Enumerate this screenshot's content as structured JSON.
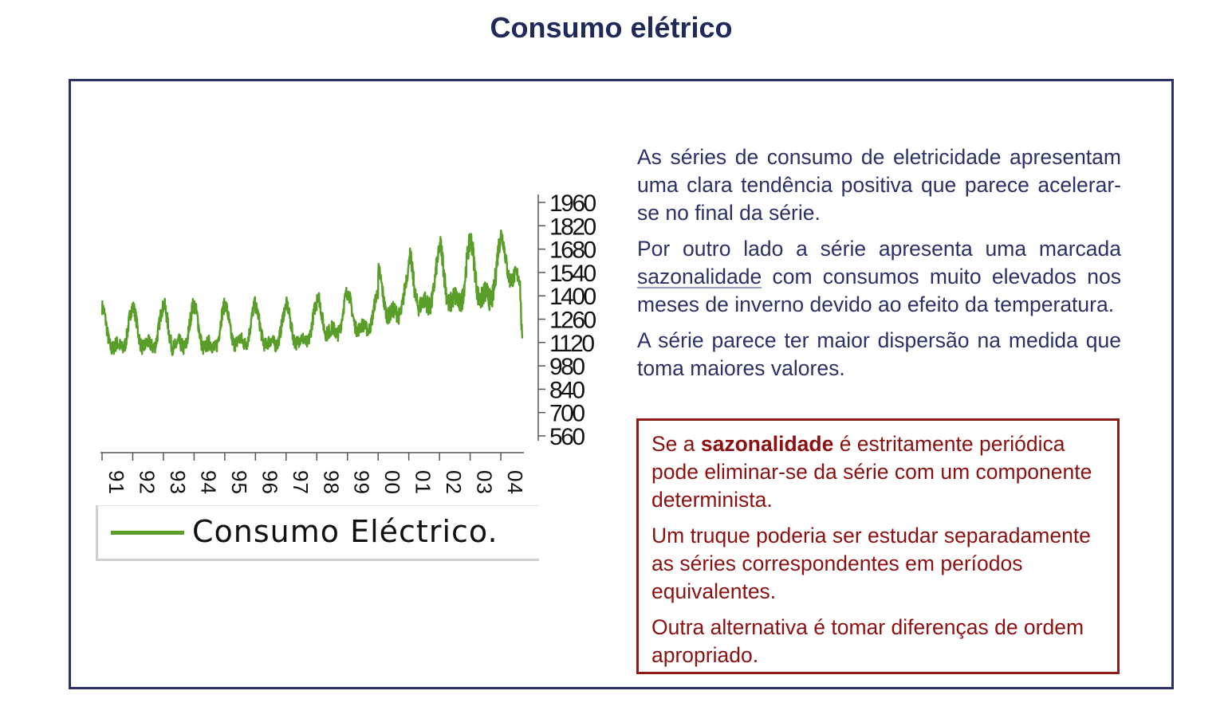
{
  "page": {
    "title": "Consumo elétrico"
  },
  "colors": {
    "title": "#1f2a5a",
    "frame": "#2b3166",
    "series": "#5a9e2a",
    "note": "#8b1010"
  },
  "chart_data": {
    "type": "line",
    "series": [
      {
        "name": "Consumo Eléctrico."
      }
    ],
    "x_tick_labels": [
      "91",
      "92",
      "93",
      "94",
      "95",
      "96",
      "97",
      "98",
      "99",
      "00",
      "01",
      "02",
      "03",
      "04"
    ],
    "x_range": [
      1991,
      2004.7
    ],
    "y_tick_labels": [
      "1960",
      "1820",
      "1680",
      "1540",
      "1400",
      "1260",
      "1120",
      "980",
      "840",
      "700",
      "560"
    ],
    "y_ticks": [
      1960,
      1820,
      1680,
      1540,
      1400,
      1260,
      1120,
      980,
      840,
      700,
      560
    ],
    "ylim": [
      560,
      1960
    ],
    "y_axis_position": "right",
    "legend_position": "bottom",
    "grid": false,
    "annual": {
      "year": [
        1991,
        1992,
        1993,
        1994,
        1995,
        1996,
        1997,
        1998,
        1999,
        2000,
        2001,
        2002,
        2003,
        2004
      ],
      "winter_peak": [
        1330,
        1330,
        1350,
        1340,
        1350,
        1330,
        1350,
        1420,
        1420,
        1550,
        1650,
        1710,
        1740,
        1770
      ],
      "summer_trough": [
        1000,
        1010,
        1000,
        1000,
        1030,
        1030,
        1040,
        1090,
        1120,
        1190,
        1230,
        1230,
        1250,
        1400
      ]
    }
  },
  "text": {
    "p1": "As séries de consumo de eletricidade apresentam uma clara tendência positiva que parece acelerar-se no final da série.",
    "p2_pre": "Por outro lado a série apresenta uma marcada",
    "p2_hl": "sazonalidade",
    "p2_post": "com consumos muito elevados nos meses de inverno devido ao efeito da temperatura.",
    "p3": "A série parece ter maior dispersão na medida que toma maiores valores."
  },
  "note": {
    "n1_pre": "Se a",
    "n1_bold": "sazonalidade",
    "n1_post": "é estritamente periódica pode eliminar-se da série com um componente determinista.",
    "n2": "Um truque poderia ser estudar separadamente as séries correspondentes em períodos equivalentes.",
    "n3": "Outra alternativa é tomar diferenças de ordem apropriado."
  }
}
